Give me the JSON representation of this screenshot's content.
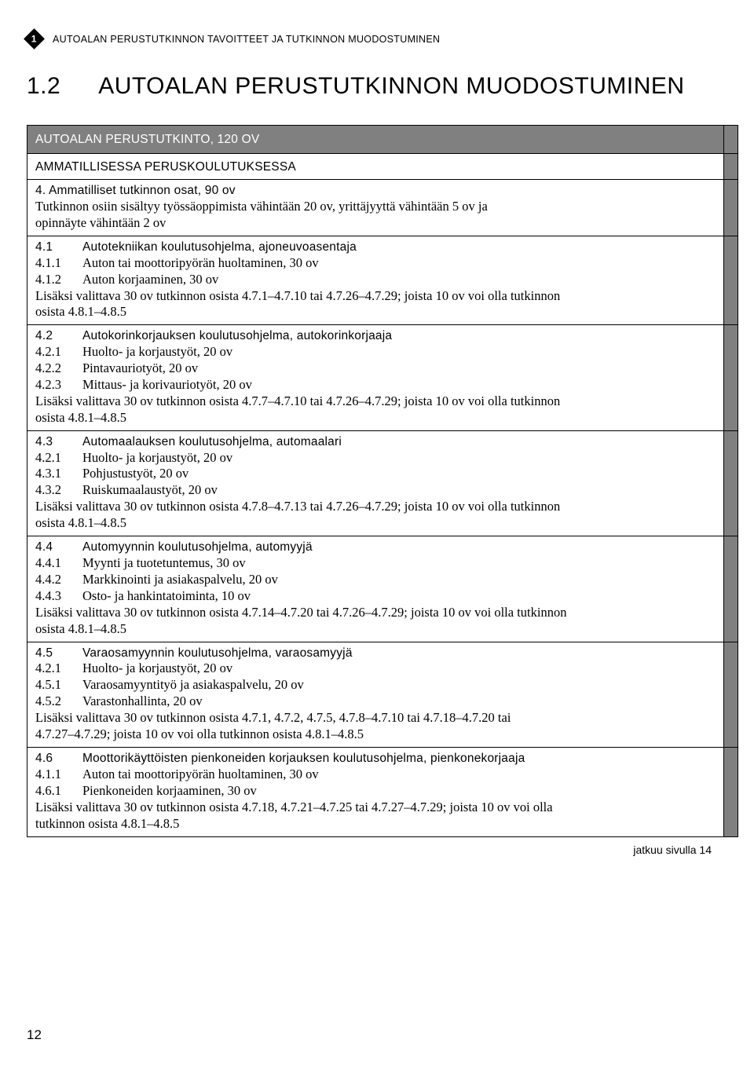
{
  "page": {
    "chapter_num_badge": "1",
    "running_head": "AUTOALAN PERUSTUTKINNON TAVOITTEET JA TUTKINNON MUODOSTUMINEN",
    "title_num": "1.2",
    "title_text": "AUTOALAN PERUSTUTKINNON MUODOSTUMINEN",
    "continue_note": "jatkuu sivulla 14",
    "page_number": "12"
  },
  "tbl": {
    "header": "AUTOALAN PERUSTUTKINTO, 120 OV",
    "sub": "AMMATILLISESSA PERUSKOULUTUKSESSA",
    "s4_title": "4.    Ammatilliset tutkinnon osat, 90 ov",
    "s4_line1": "Tutkinnon osiin sisältyy työssäoppimista vähintään 20 ov, yrittäjyyttä vähintään 5 ov ja",
    "s4_line2": "opinnäyte vähintään 2 ov",
    "s41": {
      "title_k": "4.1",
      "title_t": "Autotekniikan koulutusohjelma, ajoneuvoasentaja",
      "l1_k": "4.1.1",
      "l1_t": "Auton tai moottoripyörän huoltaminen, 30 ov",
      "l2_k": "4.1.2",
      "l2_t": "Auton korjaaminen, 30 ov",
      "rest1": "Lisäksi valittava 30 ov tutkinnon osista 4.7.1–4.7.10 tai 4.7.26–4.7.29; joista 10 ov voi olla tutkinnon",
      "rest2": "osista 4.8.1–4.8.5"
    },
    "s42": {
      "title_k": "4.2",
      "title_t": "Autokorinkorjauksen koulutusohjelma, autokorinkorjaaja",
      "l1_k": "4.2.1",
      "l1_t": "Huolto- ja korjaustyöt, 20 ov",
      "l2_k": "4.2.2",
      "l2_t": "Pintavauriotyöt, 20 ov",
      "l3_k": "4.2.3",
      "l3_t": "Mittaus- ja korivauriotyöt, 20 ov",
      "rest1": "Lisäksi valittava 30 ov tutkinnon osista 4.7.7–4.7.10 tai 4.7.26–4.7.29; joista 10 ov voi olla tutkinnon",
      "rest2": "osista 4.8.1–4.8.5"
    },
    "s43": {
      "title_k": "4.3",
      "title_t": "Automaalauksen koulutusohjelma, automaalari",
      "l1_k": "4.2.1",
      "l1_t": "Huolto- ja korjaustyöt, 20 ov",
      "l2_k": "4.3.1",
      "l2_t": "Pohjustustyöt, 20 ov",
      "l3_k": "4.3.2",
      "l3_t": "Ruiskumaalaustyöt, 20 ov",
      "rest1": "Lisäksi valittava 30 ov tutkinnon osista 4.7.8–4.7.13 tai 4.7.26–4.7.29; joista 10 ov voi olla tutkinnon",
      "rest2": "osista 4.8.1–4.8.5"
    },
    "s44": {
      "title_k": "4.4",
      "title_t": "Automyynnin koulutusohjelma, automyyjä",
      "l1_k": "4.4.1",
      "l1_t": "Myynti ja tuotetuntemus, 30 ov",
      "l2_k": "4.4.2",
      "l2_t": "Markkinointi ja asiakaspalvelu, 20 ov",
      "l3_k": "4.4.3",
      "l3_t": "Osto- ja hankintatoiminta, 10 ov",
      "rest1": "Lisäksi valittava 30 ov tutkinnon osista 4.7.14–4.7.20 tai 4.7.26–4.7.29; joista 10 ov voi olla tutkinnon",
      "rest2": "osista 4.8.1–4.8.5"
    },
    "s45": {
      "title_k": "4.5",
      "title_t": "Varaosamyynnin koulutusohjelma, varaosamyyjä",
      "l1_k": "4.2.1",
      "l1_t": "Huolto- ja korjaustyöt, 20 ov",
      "l2_k": "4.5.1",
      "l2_t": "Varaosamyyntityö ja asiakaspalvelu, 20 ov",
      "l3_k": "4.5.2",
      "l3_t": "Varastonhallinta, 20 ov",
      "rest1": "Lisäksi valittava 30 ov tutkinnon osista 4.7.1, 4.7.2, 4.7.5, 4.7.8–4.7.10 tai 4.7.18–4.7.20 tai",
      "rest2": "4.7.27–4.7.29; joista 10 ov voi olla tutkinnon osista 4.8.1–4.8.5"
    },
    "s46": {
      "title_k": "4.6",
      "title_t": "Moottorikäyttöisten pienkoneiden korjauksen koulutusohjelma, pienkonekorjaaja",
      "l1_k": "4.1.1",
      "l1_t": "Auton tai moottoripyörän huoltaminen, 30 ov",
      "l2_k": "4.6.1",
      "l2_t": "Pienkoneiden korjaaminen, 30 ov",
      "rest1": "Lisäksi valittava 30 ov tutkinnon osista 4.7.18, 4.7.21–4.7.25 tai 4.7.27–4.7.29; joista 10 ov voi olla",
      "rest2": "tutkinnon osista 4.8.1–4.8.5"
    }
  }
}
